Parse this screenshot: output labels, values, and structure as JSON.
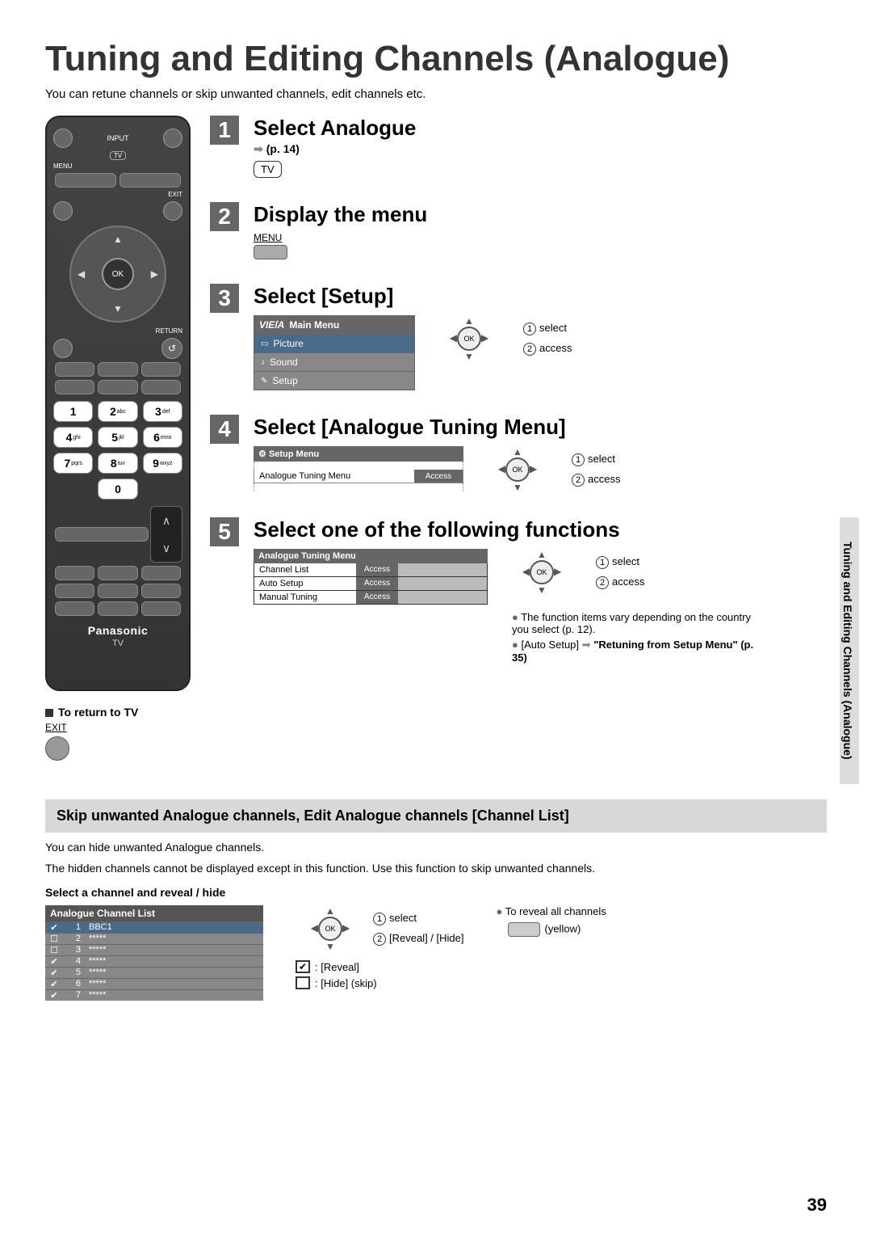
{
  "page": {
    "title": "Tuning and Editing Channels (Analogue)",
    "intro": "You can retune channels or skip unwanted channels, edit channels etc.",
    "side_tab": "Tuning and Editing Channels (Analogue)",
    "page_number": "39"
  },
  "remote": {
    "input": "INPUT",
    "tv": "TV",
    "menu": "MENU",
    "exit": "EXIT",
    "ok": "OK",
    "return": "RETURN",
    "keys": {
      "k1": "1",
      "k2": "2",
      "k2s": "abc",
      "k3": "3",
      "k3s": "def",
      "k4": "4",
      "k4s": "ghi",
      "k5": "5",
      "k5s": "jkl",
      "k6": "6",
      "k6s": "mno",
      "k7": "7",
      "k7s": "pqrs",
      "k8": "8",
      "k8s": "tuv",
      "k9": "9",
      "k9s": "wxyz",
      "k0": "0"
    },
    "brand": "Panasonic",
    "brand_tv": "TV"
  },
  "steps": {
    "s1": {
      "num": "1",
      "title": "Select Analogue",
      "ref": "(p. 14)",
      "chip": "TV"
    },
    "s2": {
      "num": "2",
      "title": "Display the menu",
      "label": "MENU"
    },
    "s3": {
      "num": "3",
      "title": "Select [Setup]",
      "panel_header": "Main Menu",
      "items": {
        "picture": "Picture",
        "sound": "Sound",
        "setup": "Setup"
      },
      "cap_select": "select",
      "cap_access": "access"
    },
    "s4": {
      "num": "4",
      "title": "Select [Analogue Tuning Menu]",
      "panel_header": "Setup Menu",
      "row_label": "Analogue Tuning Menu",
      "row_action": "Access",
      "cap_select": "select",
      "cap_access": "access"
    },
    "s5": {
      "num": "5",
      "title": "Select one of the following functions",
      "panel_header": "Analogue Tuning Menu",
      "rows": {
        "r1l": "Channel List",
        "r1a": "Access",
        "r2l": "Auto Setup",
        "r2a": "Access",
        "r3l": "Manual Tuning",
        "r3a": "Access"
      },
      "cap_select": "select",
      "cap_access": "access",
      "note1": "The function items vary depending on the country you select (p. 12).",
      "note2a": "[Auto Setup]",
      "note2b": "\"Retuning from Setup Menu\" (p. 35)"
    }
  },
  "return_block": {
    "heading": "To return to TV",
    "label": "EXIT"
  },
  "section2": {
    "bar": "Skip unwanted Analogue channels, Edit Analogue channels [Channel List]",
    "intro1": "You can hide unwanted Analogue channels.",
    "intro2": "The hidden channels cannot be displayed except in this function. Use this function to skip unwanted channels.",
    "sub": "Select a channel and reveal / hide",
    "list_header": "Analogue Channel List",
    "rows": [
      {
        "chk": "✔",
        "n": "1",
        "name": "BBC1",
        "sel": true
      },
      {
        "chk": "☐",
        "n": "2",
        "name": "*****"
      },
      {
        "chk": "☐",
        "n": "3",
        "name": "*****",
        "light": false
      },
      {
        "chk": "✔",
        "n": "4",
        "name": "*****"
      },
      {
        "chk": "✔",
        "n": "5",
        "name": "*****"
      },
      {
        "chk": "✔",
        "n": "6",
        "name": "*****"
      },
      {
        "chk": "✔",
        "n": "7",
        "name": "*****"
      }
    ],
    "cap_select": "select",
    "cap_reveal": "[Reveal] / [Hide]",
    "legend_reveal": ": [Reveal]",
    "legend_hide": ": [Hide] (skip)",
    "reveal_all": "To reveal all channels",
    "yellow": "(yellow)"
  },
  "nav": {
    "ok": "OK",
    "n1": "1",
    "n2": "2"
  },
  "colors": {
    "step_bg": "#666666",
    "highlight": "#4a6a8a",
    "panel_header": "#666666",
    "section_bar": "#d8d8d8"
  }
}
